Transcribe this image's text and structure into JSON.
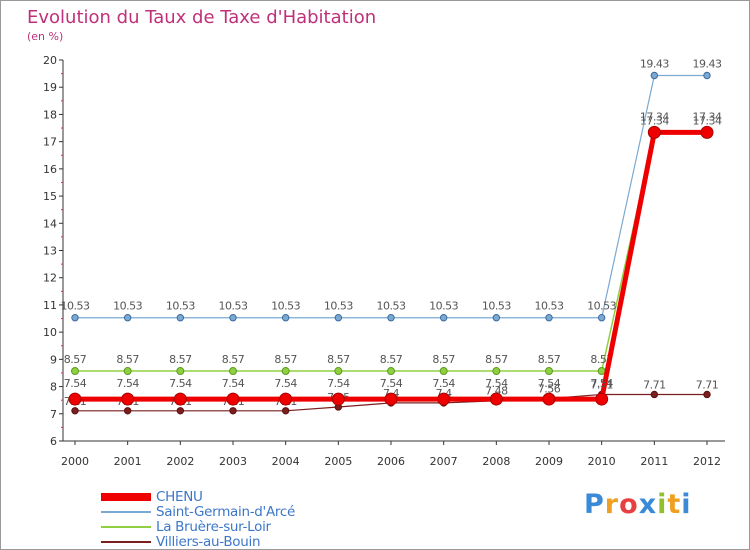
{
  "title": "Evolution du Taux de Taxe d'Habitation",
  "unit_label": "(en %)",
  "logo": {
    "text": "Proxiti"
  },
  "chart_data": {
    "type": "line",
    "title": "Evolution du Taux de Taxe d'Habitation",
    "ylabel": "(en %)",
    "xlabel": "",
    "x": [
      "2000",
      "2001",
      "2002",
      "2003",
      "2004",
      "2005",
      "2006",
      "2007",
      "2008",
      "2009",
      "2010",
      "2011",
      "2012"
    ],
    "ylim": [
      6,
      20
    ],
    "yticks": [
      6,
      7,
      8,
      9,
      10,
      11,
      12,
      13,
      14,
      15,
      16,
      17,
      18,
      19,
      20
    ],
    "series": [
      {
        "name": "Villiers-au-Bouin",
        "color": "#7a1e1e",
        "values": [
          7.11,
          7.11,
          7.11,
          7.11,
          7.11,
          7.25,
          7.4,
          7.4,
          7.48,
          7.56,
          7.71,
          7.71,
          7.71
        ],
        "labels": [
          "7.11",
          "7.11",
          "7.11",
          "7.11",
          "7.11",
          "7.25",
          "7.4",
          "7.4",
          "7.48",
          "7.56",
          "7.71",
          "7.71",
          "7.71"
        ]
      },
      {
        "name": "La Bruère-sur-Loir",
        "color": "#90d040",
        "values": [
          8.57,
          8.57,
          8.57,
          8.57,
          8.57,
          8.57,
          8.57,
          8.57,
          8.57,
          8.57,
          8.57,
          17.34,
          17.34
        ],
        "labels": [
          "8.57",
          "8.57",
          "8.57",
          "8.57",
          "8.57",
          "8.57",
          "8.57",
          "8.57",
          "8.57",
          "8.57",
          "8.57",
          "17.34",
          "17.34"
        ]
      },
      {
        "name": "Saint-Germain-d'Arcé",
        "color": "#7aaad2",
        "values": [
          10.53,
          10.53,
          10.53,
          10.53,
          10.53,
          10.53,
          10.53,
          10.53,
          10.53,
          10.53,
          10.53,
          19.43,
          19.43
        ],
        "labels": [
          "10.53",
          "10.53",
          "10.53",
          "10.53",
          "10.53",
          "10.53",
          "10.53",
          "10.53",
          "10.53",
          "10.53",
          "10.53",
          "19.43",
          "19.43"
        ]
      },
      {
        "name": "CHENU",
        "color": "#ee0000",
        "values": [
          7.54,
          7.54,
          7.54,
          7.54,
          7.54,
          7.54,
          7.54,
          7.54,
          7.54,
          7.54,
          7.54,
          17.34,
          17.34
        ],
        "labels": [
          "7.54",
          "7.54",
          "7.54",
          "7.54",
          "7.54",
          "7.54",
          "7.54",
          "7.54",
          "7.54",
          "7.54",
          "7.54",
          "17.34",
          "17.34"
        ]
      }
    ],
    "legend": [
      "CHENU",
      "Saint-Germain-d'Arcé",
      "La Bruère-sur-Loir",
      "Villiers-au-Bouin"
    ],
    "legend_position": "bottom-left",
    "grid": false
  }
}
